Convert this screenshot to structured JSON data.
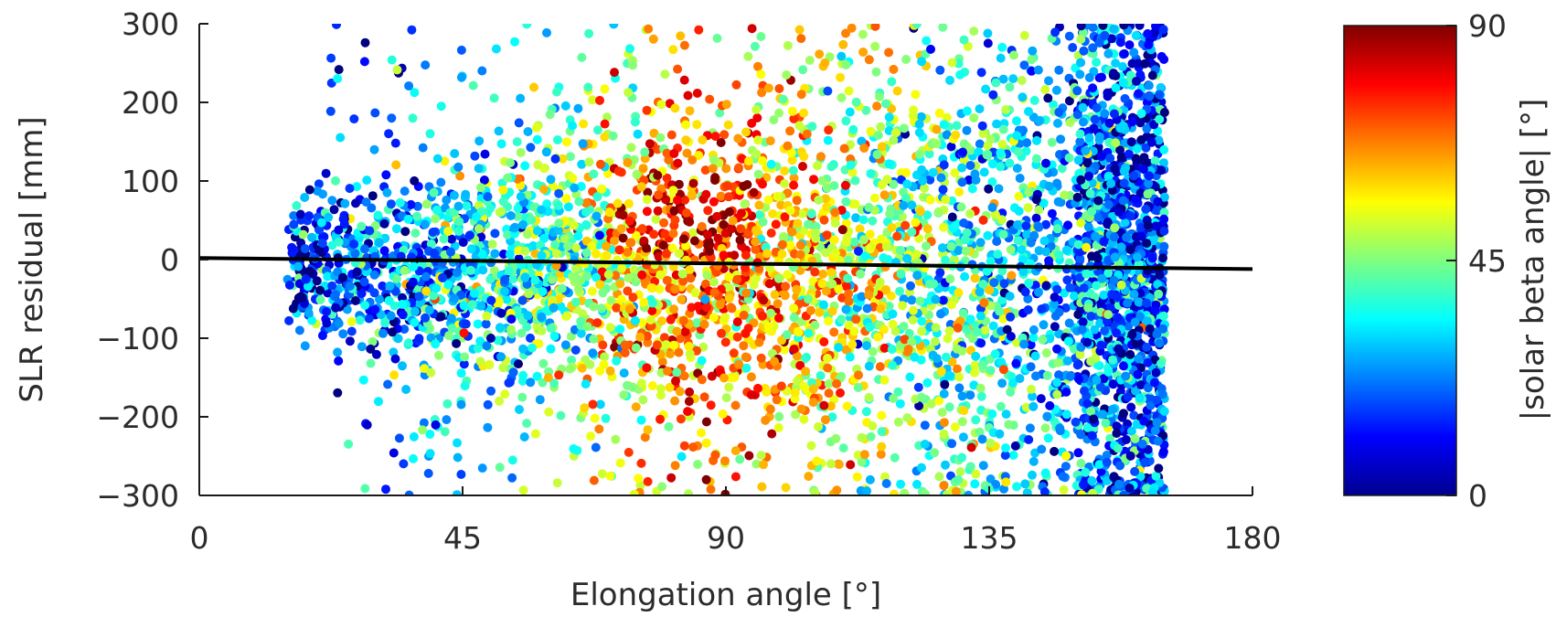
{
  "chart_data": {
    "type": "scatter",
    "title": "",
    "xlabel": "Elongation angle [°]",
    "ylabel": "SLR residual [mm]",
    "xlim": [
      0,
      180
    ],
    "ylim": [
      -300,
      300
    ],
    "x_ticks": [
      "0",
      "45",
      "90",
      "135",
      "180"
    ],
    "y_ticks": [
      "300",
      "200",
      "100",
      "0",
      "−100",
      "−200",
      "−300"
    ],
    "grid": false,
    "legend": "none",
    "colorbar": {
      "label": "|solar beta angle| [°]",
      "range": [
        0,
        90
      ],
      "ticks": [
        "90",
        "45",
        "0"
      ],
      "colormap": "jet"
    },
    "trend_line": {
      "x": [
        0,
        180
      ],
      "y": [
        2,
        -12
      ],
      "color": "#000000"
    },
    "point_cloud": {
      "count": 5200,
      "x_range_populated": [
        15,
        165
      ],
      "y_range_populated": [
        -300,
        300
      ],
      "core_band_y": [
        -150,
        90
      ],
      "note_color_by_x": [
        {
          "x": 20,
          "beta": 15
        },
        {
          "x": 60,
          "beta": 40
        },
        {
          "x": 85,
          "beta": 70
        },
        {
          "x": 120,
          "beta": 45
        },
        {
          "x": 160,
          "beta": 18
        }
      ]
    }
  }
}
